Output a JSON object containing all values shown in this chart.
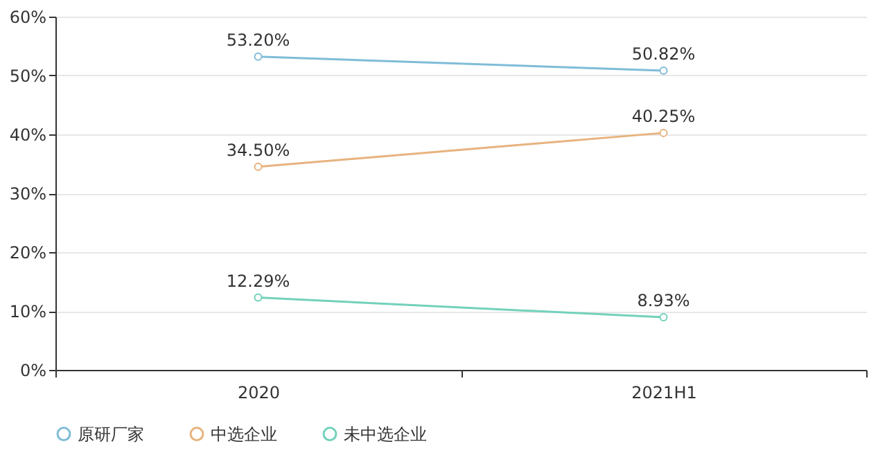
{
  "chart_data": {
    "type": "line",
    "categories": [
      "2020",
      "2021H1"
    ],
    "series": [
      {
        "name": "原研厂家",
        "color": "#7fbcd8",
        "values": [
          53.2,
          50.82
        ],
        "value_labels": [
          "53.20%",
          "50.82%"
        ]
      },
      {
        "name": "中选企业",
        "color": "#e8b27e",
        "values": [
          34.5,
          40.25
        ],
        "value_labels": [
          "34.50%",
          "40.25%"
        ]
      },
      {
        "name": "未中选企业",
        "color": "#72d1bb",
        "values": [
          12.29,
          8.93
        ],
        "value_labels": [
          "12.29%",
          "8.93%"
        ]
      }
    ],
    "ylim": [
      0,
      60
    ],
    "yticks": [
      {
        "value": 0,
        "label": "0%"
      },
      {
        "value": 10,
        "label": "10%"
      },
      {
        "value": 20,
        "label": "20%"
      },
      {
        "value": 30,
        "label": "30%"
      },
      {
        "value": 40,
        "label": "40%"
      },
      {
        "value": 50,
        "label": "50%"
      },
      {
        "value": 60,
        "label": "60%"
      }
    ],
    "grid": "y",
    "legend": "bottom",
    "marker": "circle",
    "line_style": "solid"
  }
}
